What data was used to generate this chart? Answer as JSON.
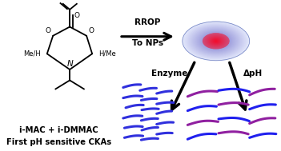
{
  "bg_color": "#ffffff",
  "title_line1": "i-MAC + i-DMMAC",
  "title_line2": "First pH sensitive CKAs",
  "arrow_label1": "RROP",
  "arrow_label2": "To NPs",
  "label_enzyme": "Enzyme",
  "label_dpH": "ΔpH",
  "figsize": [
    3.51,
    1.89
  ],
  "dpi": 100,
  "chain_color_left": "#3030dd",
  "chain_color_right_1": "#9020a0",
  "chain_color_right_2": "#2020ee",
  "struct_color": "#000000"
}
